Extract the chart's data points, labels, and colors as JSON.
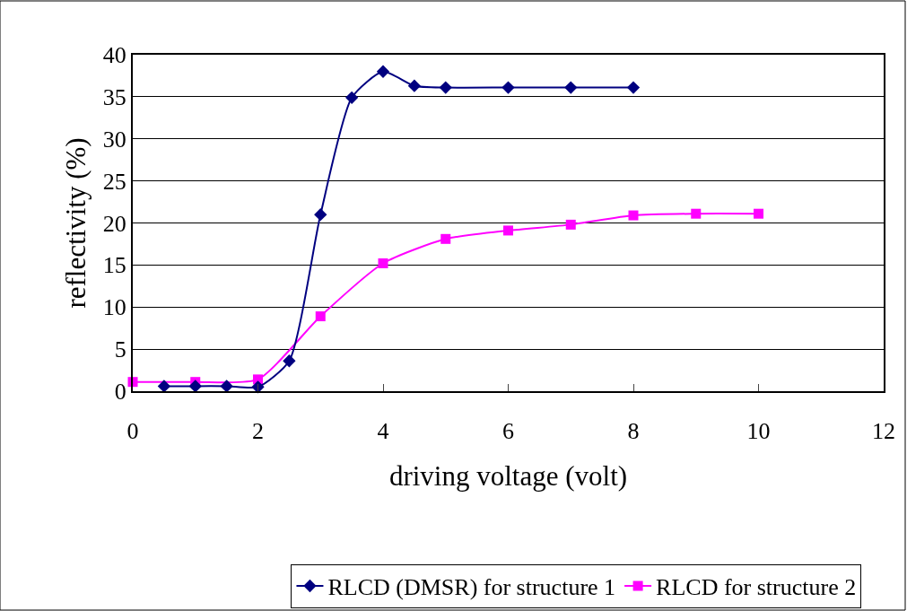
{
  "chart_data": {
    "type": "line",
    "xlabel": "driving voltage (volt)",
    "ylabel": "reflectivity (%)",
    "xlim": [
      0,
      12
    ],
    "xticks": [
      0,
      2,
      4,
      6,
      8,
      10,
      12
    ],
    "ylim": [
      0,
      40
    ],
    "yticks": [
      0,
      5,
      10,
      15,
      20,
      25,
      30,
      35,
      40
    ],
    "grid": "y",
    "legend": "bottom",
    "series": [
      {
        "name": "RLCD (DMSR) for structure 1",
        "color": "#000080",
        "marker": "diamond",
        "x": [
          0.5,
          1,
          1.5,
          2,
          2.5,
          3,
          3.5,
          4,
          4.5,
          5,
          6,
          7,
          8
        ],
        "values": [
          0.6,
          0.6,
          0.6,
          0.5,
          3.6,
          21.0,
          34.9,
          38.0,
          36.3,
          36.1,
          36.1,
          36.1,
          36.1
        ]
      },
      {
        "name": "RLCD for structure 2",
        "color": "#ff00ff",
        "marker": "square",
        "x": [
          0,
          1,
          2,
          3,
          4,
          5,
          6,
          7,
          8,
          9,
          10
        ],
        "values": [
          1.1,
          1.1,
          1.4,
          8.9,
          15.2,
          18.1,
          19.1,
          19.8,
          20.9,
          21.1,
          21.1
        ]
      }
    ]
  }
}
